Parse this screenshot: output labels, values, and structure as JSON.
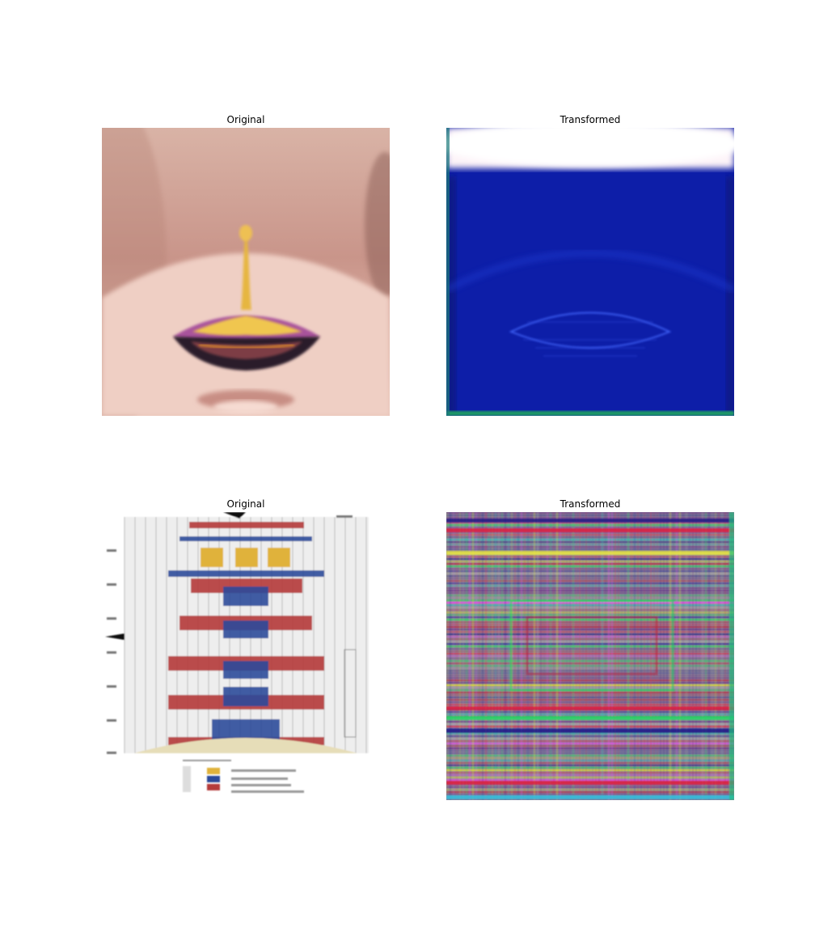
{
  "panels": [
    {
      "title": "Original"
    },
    {
      "title": "Transformed"
    },
    {
      "title": "Original"
    },
    {
      "title": "Transformed"
    }
  ]
}
